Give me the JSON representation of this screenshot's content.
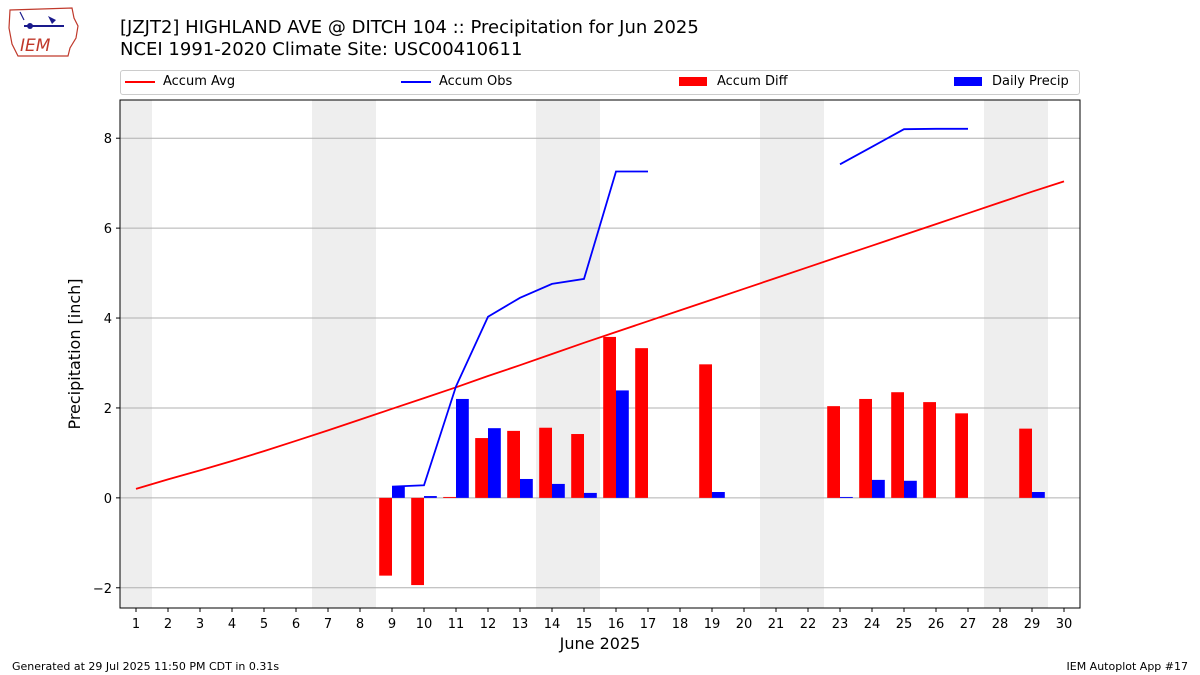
{
  "header": {
    "title_line1": "[JZJT2] HIGHLAND AVE @ DITCH 104 :: Precipitation for Jun 2025",
    "title_line2": "NCEI 1991-2020 Climate Site: USC00410611",
    "logo_text": "IEM"
  },
  "legend": {
    "accum_avg": "Accum Avg",
    "accum_obs": "Accum Obs",
    "accum_diff": "Accum Diff",
    "daily_precip": "Daily Precip"
  },
  "footer": {
    "left": "Generated at 29 Jul 2025 11:50 PM CDT in 0.31s",
    "right": "IEM Autoplot App #17"
  },
  "colors": {
    "avg": "#ff0000",
    "obs": "#0000ff",
    "diff": "#ff0000",
    "daily": "#0000ff",
    "weekend": "#eeeeee",
    "grid": "#b0b0b0"
  },
  "chart_data": {
    "type": "bar",
    "xlabel": "June 2025",
    "ylabel": "Precipitation [inch]",
    "xlim": [
      0.5,
      30.5
    ],
    "ylim": [
      -2.45,
      8.85
    ],
    "x_ticks": [
      1,
      2,
      3,
      4,
      5,
      6,
      7,
      8,
      9,
      10,
      11,
      12,
      13,
      14,
      15,
      16,
      17,
      18,
      19,
      20,
      21,
      22,
      23,
      24,
      25,
      26,
      27,
      28,
      29,
      30
    ],
    "y_ticks": [
      -2,
      0,
      2,
      4,
      6,
      8
    ],
    "grid": "horizontal",
    "legend_position": "top",
    "weekend_days": [
      1,
      7,
      8,
      14,
      15,
      21,
      22,
      28,
      29
    ],
    "accum_avg": {
      "x": [
        1,
        2,
        3,
        4,
        5,
        6,
        7,
        8,
        9,
        10,
        11,
        12,
        13,
        14,
        15,
        16,
        17,
        18,
        19,
        20,
        21,
        22,
        23,
        24,
        25,
        26,
        27,
        28,
        29,
        30
      ],
      "y": [
        0.2,
        0.41,
        0.61,
        0.82,
        1.04,
        1.27,
        1.5,
        1.74,
        1.98,
        2.22,
        2.46,
        2.71,
        2.95,
        3.2,
        3.45,
        3.69,
        3.93,
        4.17,
        4.41,
        4.65,
        4.89,
        5.13,
        5.37,
        5.61,
        5.85,
        6.09,
        6.33,
        6.57,
        6.81,
        7.04
      ]
    },
    "accum_obs": {
      "segments": [
        {
          "x": [
            9,
            10,
            11,
            12,
            13,
            14,
            15,
            16,
            17
          ],
          "y": [
            0.25,
            0.28,
            2.48,
            4.03,
            4.45,
            4.76,
            4.87,
            7.26,
            7.26
          ]
        },
        {
          "x": [
            23,
            24,
            25,
            26,
            27
          ],
          "y": [
            7.42,
            7.81,
            8.2,
            8.21,
            8.21
          ]
        }
      ]
    },
    "series": [
      {
        "name": "Accum Diff",
        "x": [
          9,
          10,
          11,
          12,
          13,
          14,
          15,
          16,
          17,
          19,
          23,
          24,
          25,
          26,
          27,
          29
        ],
        "values": [
          -1.73,
          -1.94,
          0.02,
          1.33,
          1.49,
          1.56,
          1.42,
          3.58,
          3.33,
          2.97,
          2.04,
          2.2,
          2.35,
          2.13,
          1.88,
          1.54
        ]
      },
      {
        "name": "Daily Precip",
        "x": [
          9,
          10,
          11,
          12,
          13,
          14,
          15,
          16,
          19,
          23,
          24,
          25,
          29
        ],
        "values": [
          0.25,
          0.04,
          2.2,
          1.55,
          0.42,
          0.31,
          0.11,
          2.39,
          0.13,
          0.02,
          0.4,
          0.38,
          0.13
        ]
      }
    ]
  }
}
